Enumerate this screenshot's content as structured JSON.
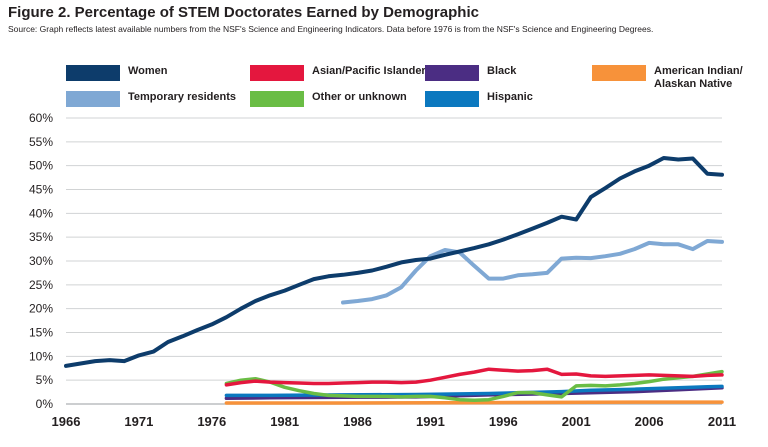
{
  "title": "Figure 2. Percentage of STEM Doctorates Earned by Demographic",
  "source": "Source: Graph reflects latest available numbers  from the NSF's Science and Engineering Indicators. Data before 1976 is from the NSF's Science and Engineering Degrees.",
  "chart_data": {
    "type": "line",
    "title": "Figure 2. Percentage of STEM Doctorates Earned by Demographic",
    "xlabel": "",
    "ylabel": "",
    "xlim": [
      1966,
      2011
    ],
    "ylim": [
      0,
      60
    ],
    "x_ticks": [
      1966,
      1971,
      1976,
      1981,
      1986,
      1991,
      1996,
      2001,
      2006,
      2011
    ],
    "y_ticks": [
      0,
      5,
      10,
      15,
      20,
      25,
      30,
      35,
      40,
      45,
      50,
      55,
      60
    ],
    "y_tick_labels": [
      "0%",
      "5%",
      "10%",
      "15%",
      "20%",
      "25%",
      "30%",
      "35%",
      "40%",
      "45%",
      "50%",
      "55%",
      "60%"
    ],
    "grid": true,
    "legend_position": "top",
    "series": [
      {
        "name": "Women",
        "color": "#0d3c6b",
        "x": [
          1966,
          1967,
          1968,
          1969,
          1970,
          1971,
          1972,
          1973,
          1974,
          1975,
          1976,
          1977,
          1978,
          1979,
          1980,
          1981,
          1982,
          1983,
          1984,
          1985,
          1986,
          1987,
          1988,
          1989,
          1990,
          1991,
          1992,
          1993,
          1994,
          1995,
          1996,
          1997,
          1998,
          1999,
          2000,
          2001,
          2002,
          2003,
          2004,
          2005,
          2006,
          2007,
          2008,
          2009,
          2010,
          2011
        ],
        "values": [
          8.0,
          8.5,
          9.0,
          9.2,
          9.0,
          10.2,
          11.0,
          13.0,
          14.2,
          15.5,
          16.7,
          18.2,
          20.0,
          21.6,
          22.8,
          23.8,
          25.0,
          26.2,
          26.8,
          27.1,
          27.5,
          28.0,
          28.8,
          29.7,
          30.2,
          30.5,
          31.3,
          32.0,
          32.7,
          33.5,
          34.5,
          35.6,
          36.8,
          38.0,
          39.3,
          38.7,
          43.4,
          45.3,
          47.3,
          48.8,
          50.0,
          51.6,
          51.3,
          51.5,
          48.3,
          48.1
        ]
      },
      {
        "name": "Temporary residents",
        "color": "#7fa8d4",
        "x": [
          1985,
          1986,
          1987,
          1988,
          1989,
          1990,
          1991,
          1992,
          1993,
          1994,
          1995,
          1996,
          1997,
          1998,
          1999,
          2000,
          2001,
          2002,
          2003,
          2004,
          2005,
          2006,
          2007,
          2008,
          2009,
          2010,
          2011
        ],
        "values": [
          21.3,
          21.6,
          22.0,
          22.8,
          24.5,
          28.0,
          31.0,
          32.3,
          31.8,
          29.0,
          26.3,
          26.3,
          27.0,
          27.2,
          27.5,
          30.5,
          30.7,
          30.6,
          31.0,
          31.5,
          32.5,
          33.8,
          33.5,
          33.5,
          32.5,
          34.2,
          34.0
        ]
      },
      {
        "name": "Asian/Pacific Islander",
        "color": "#e4173e",
        "x": [
          1977,
          1978,
          1979,
          1980,
          1981,
          1982,
          1983,
          1984,
          1985,
          1986,
          1987,
          1988,
          1989,
          1990,
          1991,
          1992,
          1993,
          1994,
          1995,
          1996,
          1997,
          1998,
          1999,
          2000,
          2001,
          2002,
          2003,
          2004,
          2005,
          2006,
          2007,
          2008,
          2009,
          2010,
          2011
        ],
        "values": [
          4.0,
          4.5,
          4.8,
          4.6,
          4.5,
          4.4,
          4.3,
          4.3,
          4.4,
          4.5,
          4.6,
          4.6,
          4.5,
          4.6,
          5.0,
          5.6,
          6.2,
          6.7,
          7.3,
          7.1,
          6.9,
          7.0,
          7.3,
          6.2,
          6.3,
          5.9,
          5.8,
          5.9,
          6.0,
          6.1,
          6.0,
          5.9,
          5.8,
          6.0,
          6.1
        ]
      },
      {
        "name": "Other or unknown",
        "color": "#6abd45",
        "x": [
          1977,
          1978,
          1979,
          1980,
          1981,
          1982,
          1983,
          1984,
          1985,
          1986,
          1987,
          1988,
          1989,
          1990,
          1991,
          1992,
          1993,
          1994,
          1995,
          1996,
          1997,
          1998,
          1999,
          2000,
          2001,
          2002,
          2003,
          2004,
          2005,
          2006,
          2007,
          2008,
          2009,
          2010,
          2011
        ],
        "values": [
          4.3,
          5.0,
          5.3,
          4.6,
          3.5,
          2.8,
          2.2,
          1.8,
          1.7,
          1.6,
          1.6,
          1.6,
          1.5,
          1.6,
          1.6,
          1.3,
          0.9,
          0.8,
          0.9,
          1.6,
          2.4,
          2.4,
          1.9,
          1.5,
          3.8,
          3.9,
          3.8,
          4.0,
          4.3,
          4.7,
          5.2,
          5.5,
          5.8,
          6.3,
          6.8
        ]
      },
      {
        "name": "Black",
        "color": "#4b2d83",
        "x": [
          1977,
          1980,
          1985,
          1990,
          1995,
          2000,
          2005,
          2008,
          2011
        ],
        "values": [
          1.2,
          1.3,
          1.4,
          1.5,
          1.9,
          2.2,
          2.6,
          3.0,
          3.4
        ]
      },
      {
        "name": "Hispanic",
        "color": "#0b78bf",
        "x": [
          1977,
          1980,
          1985,
          1990,
          1995,
          2000,
          2002,
          2005,
          2008,
          2010,
          2011
        ],
        "values": [
          1.8,
          1.8,
          1.9,
          2.0,
          2.2,
          2.6,
          2.9,
          3.1,
          3.4,
          3.6,
          3.7
        ]
      },
      {
        "name": "American Indian/\nAlaskan Native",
        "color": "#f7923a",
        "x": [
          1977,
          1985,
          1995,
          2005,
          2011
        ],
        "values": [
          0.2,
          0.2,
          0.3,
          0.4,
          0.4
        ]
      }
    ]
  }
}
